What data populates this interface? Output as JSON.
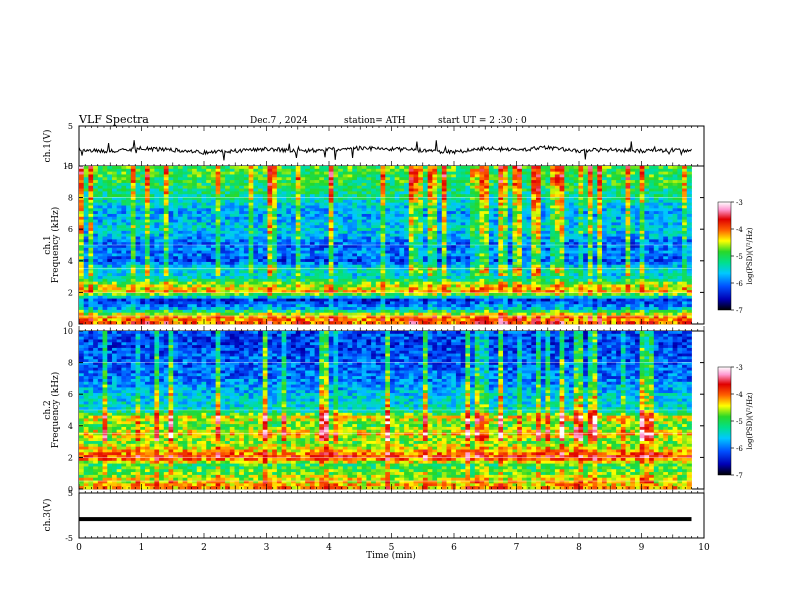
{
  "header": {
    "title": "VLF  Spectra",
    "date": "Dec.7  , 2024",
    "station": "station= ATH",
    "start_ut": "start  UT  =   2  :30 : 0"
  },
  "colors": {
    "background": "#ffffff",
    "waveform": "#000000",
    "colormap": [
      "#000000",
      "#0000b4",
      "#0050ff",
      "#00c8ff",
      "#00e08c",
      "#28d828",
      "#ffff00",
      "#ff6000",
      "#e00000",
      "#ff9ad2",
      "#ffffff"
    ]
  },
  "chart_data": [
    {
      "id": "ch1-waveform",
      "type": "line",
      "ylabel": "ch.1(V)",
      "ylim": [
        -5,
        5
      ],
      "y_ticks": [
        "5",
        "-5"
      ],
      "xlim": [
        0,
        10
      ],
      "data_end_min": 9.8,
      "series": [
        {
          "x": [
            0,
            0.5,
            1,
            1.5,
            2,
            2.5,
            3,
            3.5,
            4,
            4.5,
            5,
            5.5,
            6,
            6.5,
            7,
            7.5,
            8,
            8.5,
            9,
            9.5,
            9.8
          ],
          "values": [
            -0.8,
            -1.4,
            -0.6,
            -1.0,
            -1.6,
            -1.2,
            -0.7,
            -1.3,
            -0.9,
            -0.5,
            -0.8,
            -1.1,
            -1.5,
            -0.6,
            -1.0,
            -0.4,
            -1.2,
            -0.9,
            -1.3,
            -1.0,
            -1.2
          ]
        }
      ]
    },
    {
      "id": "ch1-spectrogram",
      "type": "heatmap",
      "title": "ch.1",
      "ylabel": "Frequency  (kHz)",
      "y_ticks": [
        "0",
        "2",
        "4",
        "6",
        "8",
        "10"
      ],
      "ylim": [
        0,
        10
      ],
      "xlim": [
        0,
        10
      ],
      "data_end_min": 9.8,
      "colorbar": {
        "label": "log(PSD)(V²/Hz)",
        "ticks": [
          "-3",
          "-4",
          "-5",
          "-6",
          "-7"
        ],
        "range": [
          -7,
          -3
        ]
      },
      "frequency_profile_khz": [
        0,
        0.5,
        1,
        1.5,
        2,
        2.5,
        3,
        3.5,
        4,
        4.5,
        5,
        6,
        7,
        8,
        9,
        10
      ],
      "log_psd_profile": [
        -4.0,
        -4.2,
        -5.8,
        -6.4,
        -4.3,
        -4.6,
        -5.6,
        -5.4,
        -6.2,
        -5.9,
        -6.1,
        -5.5,
        -5.8,
        -5.3,
        -5.0,
        -4.9
      ]
    },
    {
      "id": "ch2-spectrogram",
      "type": "heatmap",
      "title": "ch.2",
      "ylabel": "Frequency  (kHz)",
      "y_ticks": [
        "0",
        "2",
        "4",
        "6",
        "8",
        "10"
      ],
      "ylim": [
        0,
        10
      ],
      "xlim": [
        0,
        10
      ],
      "data_end_min": 9.8,
      "colorbar": {
        "label": "log(PSD)(V²/Hz)",
        "ticks": [
          "-3",
          "-4",
          "-5",
          "-6",
          "-7"
        ],
        "range": [
          -7,
          -3
        ]
      },
      "frequency_profile_khz": [
        0,
        0.5,
        1,
        1.5,
        2,
        2.5,
        3,
        3.5,
        4,
        4.5,
        5,
        6,
        7,
        8,
        9,
        10
      ],
      "log_psd_profile": [
        -4.2,
        -4.4,
        -4.8,
        -5.0,
        -3.8,
        -4.4,
        -4.8,
        -4.3,
        -4.9,
        -4.4,
        -5.4,
        -5.6,
        -6.0,
        -6.1,
        -6.2,
        -6.2
      ]
    },
    {
      "id": "ch3-waveform",
      "type": "line",
      "ylabel": "ch.3(V)",
      "ylim": [
        -5,
        5
      ],
      "y_ticks": [
        "5",
        "-5"
      ],
      "xlim": [
        0,
        10
      ],
      "xlabel": "Time  (min)",
      "x_ticks": [
        "0",
        "1",
        "2",
        "3",
        "4",
        "5",
        "6",
        "7",
        "8",
        "9",
        "10"
      ],
      "data_end_min": 9.8,
      "series": [
        {
          "x": [
            0,
            9.8
          ],
          "values": [
            -0.8,
            -0.8
          ]
        }
      ]
    }
  ]
}
